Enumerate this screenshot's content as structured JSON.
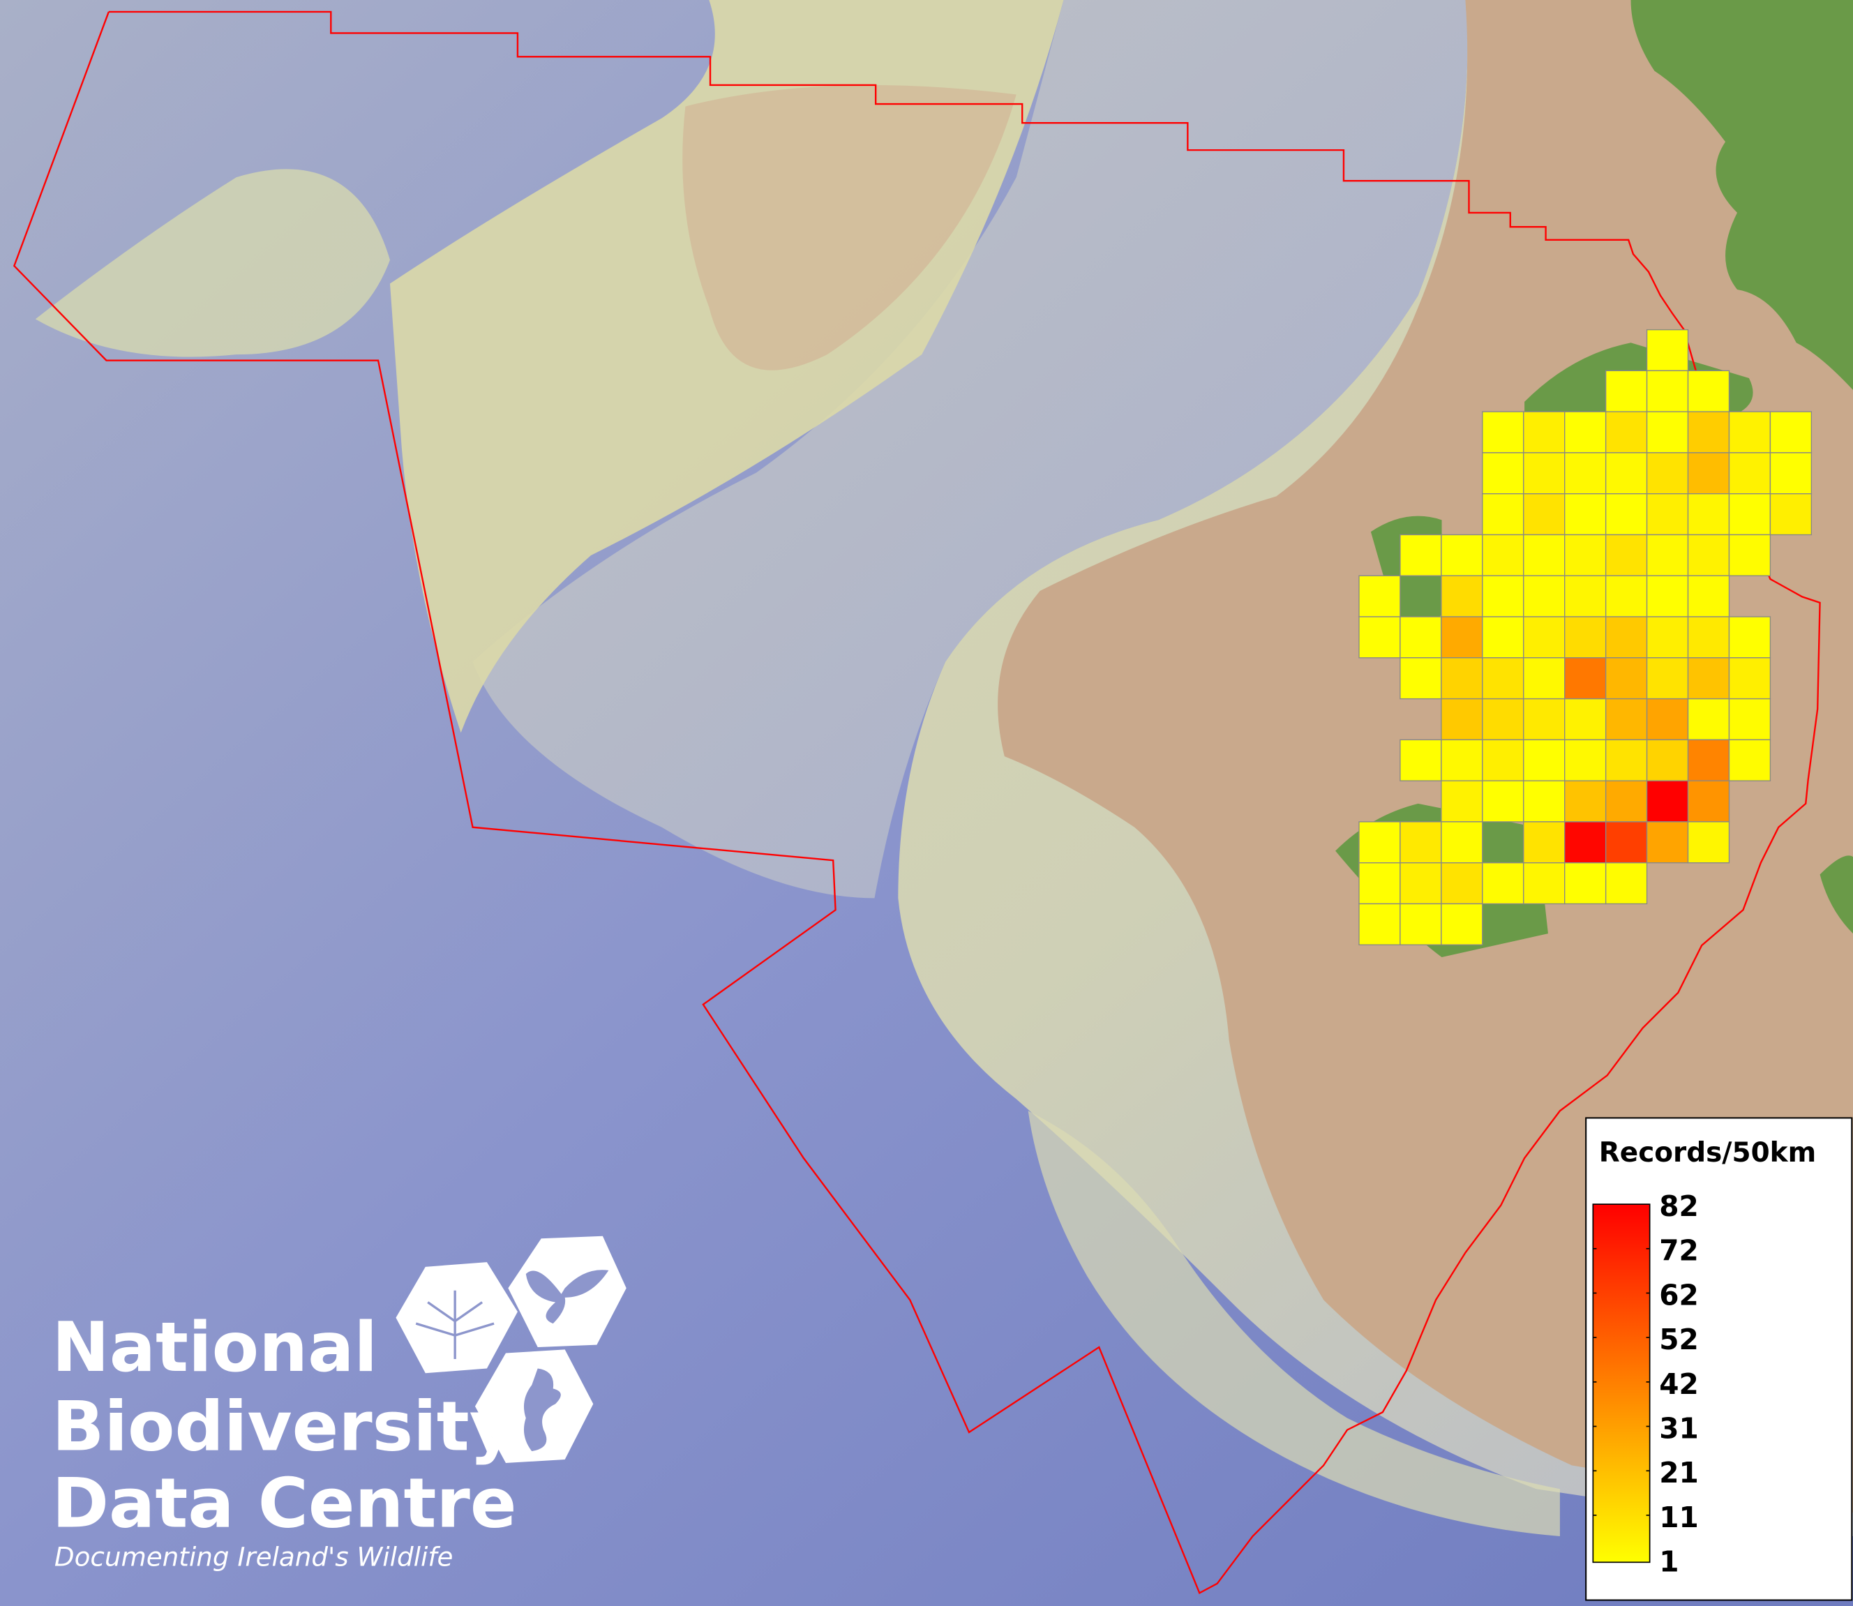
{
  "legend": {
    "title": "Records/50km",
    "ticks": [
      "82",
      "72",
      "62",
      "52",
      "42",
      "31",
      "21",
      "11",
      "1"
    ],
    "min": 1,
    "max": 82,
    "color_low": "#ffff00",
    "color_high": "#ff0000"
  },
  "logo": {
    "line1": "National",
    "line2": "Biodiversity",
    "line3": "Data Centre",
    "tagline": "Documenting Ireland's Wildlife",
    "icons": [
      "tree-icon",
      "butterfly-icon",
      "seahorse-icon"
    ]
  },
  "colors": {
    "boundary": "#ff0000",
    "deep_sea": "#7c86c4",
    "shelf": "#d9d6ad",
    "land": "#c9a98c",
    "vegetation": "#6a9a48",
    "cell_border": "#888888"
  },
  "chart_data": {
    "type": "heatmap",
    "title": "Records/50km",
    "value_range": [
      1,
      82
    ],
    "grid_cells_note_rows_top_to_bottom": "",
    "rows": [
      {
        "row": 0,
        "cells": [
          [
            7,
            1
          ]
        ]
      },
      {
        "row": 1,
        "cells": [
          [
            6,
            1
          ],
          [
            7,
            1
          ],
          [
            8,
            1
          ]
        ]
      },
      {
        "row": 2,
        "cells": [
          [
            3,
            1
          ],
          [
            4,
            6
          ],
          [
            5,
            1
          ],
          [
            6,
            10
          ],
          [
            7,
            1
          ],
          [
            8,
            17
          ],
          [
            9,
            5
          ],
          [
            10,
            1
          ]
        ]
      },
      {
        "row": 3,
        "cells": [
          [
            3,
            1
          ],
          [
            4,
            5
          ],
          [
            5,
            3
          ],
          [
            6,
            3
          ],
          [
            7,
            10
          ],
          [
            8,
            22
          ],
          [
            9,
            5
          ],
          [
            10,
            1
          ]
        ]
      },
      {
        "row": 4,
        "cells": [
          [
            3,
            2
          ],
          [
            4,
            10
          ],
          [
            5,
            1
          ],
          [
            6,
            1
          ],
          [
            7,
            6
          ],
          [
            8,
            4
          ],
          [
            9,
            1
          ],
          [
            10,
            6
          ]
        ]
      },
      {
        "row": 5,
        "cells": [
          [
            1,
            1
          ],
          [
            2,
            1
          ],
          [
            3,
            4
          ],
          [
            4,
            2
          ],
          [
            5,
            4
          ],
          [
            6,
            10
          ],
          [
            7,
            3
          ],
          [
            8,
            5
          ],
          [
            9,
            2
          ]
        ]
      },
      {
        "row": 6,
        "cells": [
          [
            0,
            1
          ],
          [
            2,
            12
          ],
          [
            3,
            1
          ],
          [
            4,
            2
          ],
          [
            5,
            4
          ],
          [
            6,
            3
          ],
          [
            7,
            1
          ],
          [
            8,
            2
          ]
        ]
      },
      {
        "row": 7,
        "cells": [
          [
            0,
            1
          ],
          [
            1,
            1
          ],
          [
            2,
            28
          ],
          [
            3,
            1
          ],
          [
            4,
            6
          ],
          [
            5,
            12
          ],
          [
            6,
            18
          ],
          [
            7,
            6
          ],
          [
            8,
            8
          ],
          [
            9,
            1
          ]
        ]
      },
      {
        "row": 8,
        "cells": [
          [
            1,
            1
          ],
          [
            2,
            15
          ],
          [
            3,
            10
          ],
          [
            4,
            3
          ],
          [
            5,
            44
          ],
          [
            6,
            24
          ],
          [
            7,
            10
          ],
          [
            8,
            20
          ],
          [
            9,
            6
          ]
        ]
      },
      {
        "row": 9,
        "cells": [
          [
            2,
            18
          ],
          [
            3,
            12
          ],
          [
            4,
            8
          ],
          [
            5,
            5
          ],
          [
            6,
            24
          ],
          [
            7,
            30
          ],
          [
            8,
            2
          ],
          [
            9,
            2
          ]
        ]
      },
      {
        "row": 10,
        "cells": [
          [
            1,
            1
          ],
          [
            2,
            3
          ],
          [
            3,
            6
          ],
          [
            4,
            1
          ],
          [
            5,
            3
          ],
          [
            6,
            10
          ],
          [
            7,
            15
          ],
          [
            8,
            40
          ],
          [
            9,
            2
          ]
        ]
      },
      {
        "row": 11,
        "cells": [
          [
            2,
            5
          ],
          [
            3,
            1
          ],
          [
            4,
            1
          ],
          [
            5,
            20
          ],
          [
            6,
            28
          ],
          [
            7,
            82
          ],
          [
            8,
            35
          ]
        ]
      },
      {
        "row": 12,
        "cells": [
          [
            0,
            1
          ],
          [
            1,
            8
          ],
          [
            2,
            2
          ],
          [
            4,
            10
          ],
          [
            5,
            80
          ],
          [
            6,
            62
          ],
          [
            7,
            30
          ],
          [
            8,
            4
          ]
        ]
      },
      {
        "row": 13,
        "cells": [
          [
            0,
            1
          ],
          [
            1,
            6
          ],
          [
            2,
            10
          ],
          [
            3,
            2
          ],
          [
            4,
            4
          ],
          [
            5,
            1
          ],
          [
            6,
            2
          ]
        ]
      },
      {
        "row": 14,
        "cells": [
          [
            0,
            1
          ],
          [
            1,
            1
          ],
          [
            2,
            1
          ]
        ]
      }
    ]
  }
}
